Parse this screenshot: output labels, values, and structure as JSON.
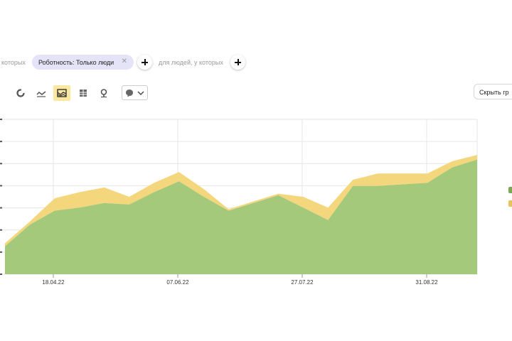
{
  "filters": {
    "prefix_text": "которых",
    "chip_label": "Роботность: Только люди",
    "chip_close": "✕",
    "people_text": "для людей, у которых"
  },
  "toolbar": {
    "icons": [
      "pie-chart-icon",
      "line-chart-icon",
      "stacked-area-icon",
      "table-chart-icon",
      "map-pin-icon"
    ],
    "active": "stacked-area-icon"
  },
  "hide_button": {
    "label": "Скрыть гр"
  },
  "chart_data": {
    "type": "area",
    "stacked": true,
    "x_tick_labels": [
      "18.04.22",
      "07.06.22",
      "27.07.22",
      "31.08.22"
    ],
    "grid": true,
    "legend": "right",
    "colors": {
      "green": "#a5c97a",
      "yellow": "#f4d67d"
    },
    "series": [
      {
        "color": "green",
        "values": [
          0.18,
          0.32,
          0.41,
          0.43,
          0.46,
          0.45,
          0.53,
          0.6,
          0.5,
          0.41,
          0.46,
          0.51,
          0.43,
          0.35,
          0.57,
          0.57,
          0.58,
          0.59,
          0.69,
          0.74
        ]
      },
      {
        "color": "yellow",
        "values": [
          0.02,
          0.02,
          0.08,
          0.1,
          0.1,
          0.05,
          0.06,
          0.06,
          0.05,
          0.01,
          0.01,
          0.01,
          0.07,
          0.08,
          0.04,
          0.08,
          0.07,
          0.06,
          0.04,
          0.03
        ]
      }
    ]
  }
}
